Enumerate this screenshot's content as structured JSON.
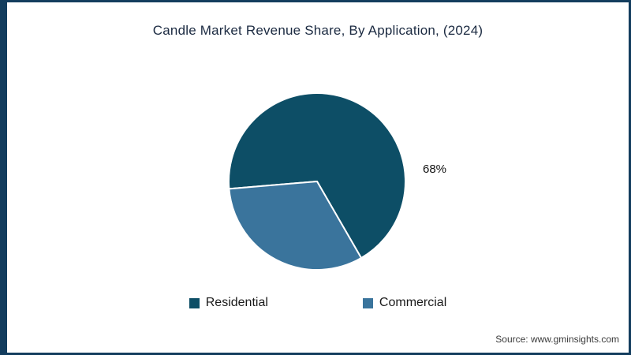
{
  "title": "Candle Market Revenue Share, By Application, (2024)",
  "source": "Source: www.gminsights.com",
  "colors": {
    "background": "#ffffff",
    "frame_border": "#133d5e",
    "residential": "#0d4e66",
    "commercial": "#3a749c",
    "slice_divider": "#ffffff"
  },
  "chart_data": {
    "type": "pie",
    "title": "Candle Market Revenue Share, By Application, (2024)",
    "legend_position": "bottom",
    "start_angle_deg": 265.2,
    "slices": [
      {
        "label": "Residential",
        "value": 68,
        "color": "#0d4e66",
        "data_label": "68%"
      },
      {
        "label": "Commercial",
        "value": 32,
        "color": "#3a749c",
        "data_label": ""
      }
    ]
  }
}
